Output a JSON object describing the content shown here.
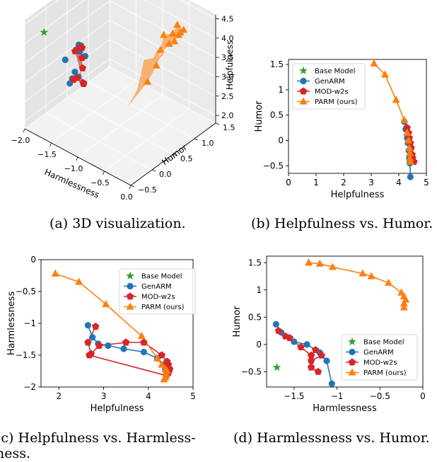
{
  "captions": {
    "a": "(a) 3D visualization.",
    "b": "(b) Helpfulness vs. Humor.",
    "c_line1": "(c) Helpfulness vs.  Harmless-",
    "c_line2": "ness.",
    "d": "(d) Harmlessness vs. Humor."
  },
  "colors": {
    "base_model": "#2ca02c",
    "genarm": "#1f77b4",
    "mod_w2s": "#d62728",
    "parm": "#ff7f0e"
  },
  "legend_labels": [
    "Base Model",
    "GenARM",
    "MOD-w2s",
    "PARM (ours)"
  ],
  "chart_data": [
    {
      "id": "a",
      "type": "scatter",
      "projection": "3d",
      "title": "",
      "xlabel": "Harmlessness",
      "ylabel": "Humor",
      "zlabel": "Helpfulness",
      "x_ticks": [
        "−2.0",
        "−1.5",
        "−1.0",
        "−0.5",
        "0.0"
      ],
      "y_ticks": [
        "−0.5",
        "0.0",
        "0.5",
        "1.0",
        "1.5"
      ],
      "z_ticks": [
        "2.0",
        "2.5",
        "3.0",
        "3.5",
        "4.0",
        "4.5"
      ],
      "xlim": [
        -2.0,
        0.0
      ],
      "ylim": [
        -0.5,
        1.5
      ],
      "zlim": [
        1.8,
        4.6
      ],
      "series": [
        {
          "name": "GenARM",
          "points": [
            [
              -1.7,
              0.38,
              2.65
            ],
            [
              -1.68,
              0.22,
              2.75
            ],
            [
              -1.55,
              0.12,
              3.1
            ],
            [
              -1.4,
              0.05,
              3.8
            ],
            [
              -1.3,
              -0.05,
              4.1
            ],
            [
              -1.22,
              -0.2,
              4.3
            ],
            [
              -1.15,
              -0.35,
              4.35
            ],
            [
              -1.06,
              -0.72,
              4.45
            ],
            [
              -1.55,
              0.0,
              2.9
            ],
            [
              -1.5,
              0.3,
              3.4
            ]
          ]
        },
        {
          "name": "MOD-w2s",
          "points": [
            [
              -1.68,
              0.25,
              2.7
            ],
            [
              -1.6,
              0.15,
              2.85
            ],
            [
              -1.5,
              0.1,
              3.0
            ],
            [
              -1.35,
              0.05,
              3.4
            ],
            [
              -1.28,
              -0.05,
              3.8
            ],
            [
              -1.2,
              -0.15,
              4.2
            ],
            [
              -1.12,
              -0.3,
              4.4
            ],
            [
              -1.05,
              -0.5,
              4.5
            ],
            [
              -1.45,
              0.2,
              2.8
            ],
            [
              -1.3,
              0.0,
              3.1
            ]
          ]
        },
        {
          "name": "PARM (ours)",
          "points": [
            [
              -0.22,
              0.68,
              4.35
            ],
            [
              -0.2,
              0.78,
              4.35
            ],
            [
              -0.22,
              0.9,
              4.4
            ],
            [
              -0.25,
              0.98,
              4.38
            ],
            [
              -0.3,
              1.12,
              4.3
            ],
            [
              -0.5,
              1.22,
              4.2
            ],
            [
              -0.65,
              1.3,
              3.8
            ],
            [
              -0.9,
              1.4,
              3.5
            ],
            [
              -1.0,
              1.45,
              3.0
            ],
            [
              -1.1,
              1.48,
              2.5
            ],
            [
              -1.3,
              1.52,
              1.9
            ]
          ]
        },
        {
          "name": "Base Model",
          "points": [
            [
              -1.7,
              -0.42,
              4.45
            ]
          ]
        }
      ]
    },
    {
      "id": "b",
      "type": "line",
      "title": "",
      "xlabel": "Helpfulness",
      "ylabel": "Humor",
      "xlim": [
        0,
        5
      ],
      "ylim": [
        -0.65,
        1.6
      ],
      "x_ticks": [
        0,
        1,
        2,
        3,
        4,
        5
      ],
      "y_ticks": [
        -0.5,
        0.0,
        0.5,
        1.0,
        1.5
      ],
      "legend_position": "upper-left",
      "series": [
        {
          "name": "Base Model",
          "x": [
            4.42
          ],
          "y": [
            -0.42
          ]
        },
        {
          "name": "GenARM",
          "x": [
            4.2,
            4.25,
            4.3,
            4.33,
            4.36,
            4.38,
            4.4,
            4.42
          ],
          "y": [
            0.37,
            0.22,
            0.05,
            -0.05,
            -0.2,
            -0.35,
            -0.45,
            -0.72
          ]
        },
        {
          "name": "MOD-w2s",
          "x": [
            4.3,
            4.35,
            4.38,
            4.42,
            4.45,
            4.48,
            4.5,
            4.55
          ],
          "y": [
            0.25,
            0.15,
            0.05,
            -0.05,
            -0.15,
            -0.28,
            -0.35,
            -0.42
          ]
        },
        {
          "name": "PARM (ours)",
          "x": [
            3.1,
            3.5,
            3.9,
            4.2,
            4.3,
            4.35,
            4.38,
            4.4,
            4.4,
            4.42
          ],
          "y": [
            1.52,
            1.3,
            0.8,
            0.4,
            0.15,
            0.0,
            -0.15,
            -0.25,
            -0.35,
            -0.42
          ]
        }
      ]
    },
    {
      "id": "c",
      "type": "line",
      "title": "",
      "xlabel": "Helpfulness",
      "ylabel": "Harmlessness",
      "xlim": [
        1.6,
        5.0
      ],
      "ylim": [
        -2.0,
        0.0
      ],
      "x_ticks": [
        2,
        3,
        4,
        5
      ],
      "y_ticks": [
        0.0,
        -0.5,
        -1.0,
        -1.5,
        -2.0
      ],
      "legend_position": "upper-right",
      "series": [
        {
          "name": "Base Model",
          "x": [
            4.45
          ],
          "y": [
            -1.7
          ]
        },
        {
          "name": "GenARM",
          "x": [
            2.65,
            2.75,
            2.88,
            3.1,
            3.45,
            3.9,
            4.2,
            4.35,
            4.38,
            4.4,
            4.42
          ],
          "y": [
            -1.03,
            -1.22,
            -1.32,
            -1.35,
            -1.4,
            -1.45,
            -1.55,
            -1.65,
            -1.72,
            -1.75,
            -1.8
          ]
        },
        {
          "name": "MOD-w2s",
          "x": [
            2.82,
            2.65,
            2.72,
            2.9,
            3.5,
            3.9,
            4.3,
            4.42,
            4.45,
            4.48,
            4.45,
            4.4,
            2.68
          ],
          "y": [
            -1.05,
            -1.3,
            -1.48,
            -1.35,
            -1.3,
            -1.3,
            -1.5,
            -1.6,
            -1.65,
            -1.72,
            -1.78,
            -1.82,
            -1.5
          ]
        },
        {
          "name": "PARM (ours)",
          "x": [
            1.92,
            2.45,
            3.05,
            3.85,
            4.2,
            4.3,
            4.38,
            4.42,
            4.4,
            4.38,
            4.35
          ],
          "y": [
            -0.22,
            -0.35,
            -0.7,
            -1.2,
            -1.55,
            -1.65,
            -1.72,
            -1.75,
            -1.8,
            -1.85,
            -1.88
          ]
        }
      ]
    },
    {
      "id": "d",
      "type": "line",
      "title": "",
      "xlabel": "Harmlessness",
      "ylabel": "Humor",
      "xlim": [
        -1.82,
        0.0
      ],
      "ylim": [
        -0.78,
        1.62
      ],
      "x_ticks": [
        -1.5,
        -1.0,
        -0.5,
        0.0
      ],
      "y_ticks": [
        -0.5,
        0.0,
        0.5,
        1.0,
        1.5
      ],
      "legend_position": "lower-right",
      "series": [
        {
          "name": "Base Model",
          "x": [
            -1.7
          ],
          "y": [
            -0.42
          ]
        },
        {
          "name": "GenARM",
          "x": [
            -1.71,
            -1.65,
            -1.5,
            -1.35,
            -1.2,
            -1.12,
            -1.06
          ],
          "y": [
            0.37,
            0.22,
            0.05,
            0.0,
            -0.15,
            -0.3,
            -0.72
          ]
        },
        {
          "name": "MOD-w2s",
          "x": [
            -1.68,
            -1.6,
            -1.55,
            -1.42,
            -1.3,
            -1.25,
            -1.18,
            -1.3,
            -1.3,
            -1.22
          ],
          "y": [
            0.25,
            0.15,
            0.12,
            -0.05,
            -0.2,
            -0.1,
            -0.2,
            -0.3,
            -0.42,
            -0.5
          ]
        },
        {
          "name": "PARM (ours)",
          "x": [
            -1.33,
            -1.2,
            -1.05,
            -0.7,
            -0.6,
            -0.4,
            -0.25,
            -0.22,
            -0.2,
            -0.22,
            -0.22
          ],
          "y": [
            1.5,
            1.48,
            1.42,
            1.3,
            1.25,
            1.13,
            0.95,
            0.88,
            0.82,
            0.75,
            0.68
          ]
        }
      ]
    }
  ]
}
